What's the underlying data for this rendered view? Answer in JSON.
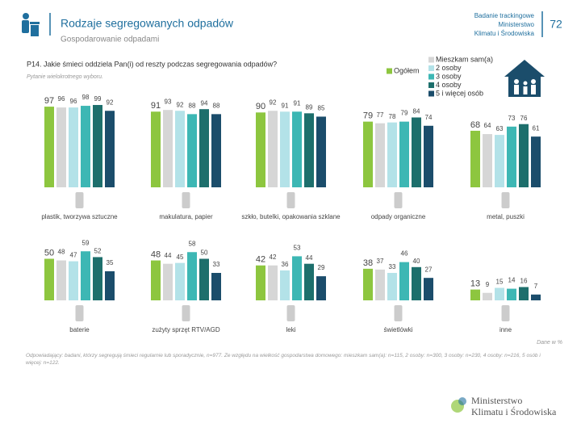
{
  "header": {
    "title": "Rodzaje segregowanych odpadów",
    "subtitle": "Gospodarowanie odpadami",
    "report": [
      "Badanie trackingowe",
      "Ministerstwo",
      "Klimatu i Środowiska"
    ],
    "page": 72
  },
  "chart_data": {
    "type": "bar",
    "title": "P14. Jakie śmieci oddziela Pan(i) od reszty podczas segregowania odpadów?",
    "subtitle": "Pytanie wielokrotnego wyboru.",
    "categories": [
      "plastik, tworzywa sztuczne",
      "makulatura, papier",
      "szkło, butelki, opakowania szklane",
      "odpady organiczne",
      "metal, puszki",
      "baterie",
      "zużyty sprzęt RTV/AGD",
      "leki",
      "świetlówki",
      "inne"
    ],
    "ylim": [
      0,
      100
    ],
    "series": [
      {
        "name": "Ogółem",
        "color": "#8dc63f",
        "values": [
          97,
          91,
          90,
          79,
          68,
          50,
          48,
          42,
          38,
          13
        ]
      },
      {
        "name": "Mieszkam sam(a)",
        "color": "#d6d6d6",
        "values": [
          96,
          93,
          92,
          77,
          64,
          48,
          44,
          42,
          37,
          9
        ]
      },
      {
        "name": "2 osoby",
        "color": "#b3e2e8",
        "values": [
          96,
          92,
          91,
          78,
          63,
          47,
          45,
          36,
          33,
          15
        ]
      },
      {
        "name": "3 osoby",
        "color": "#3db7b4",
        "values": [
          98,
          88,
          91,
          79,
          73,
          59,
          58,
          53,
          46,
          14
        ]
      },
      {
        "name": "4 osoby",
        "color": "#1d6f6c",
        "values": [
          99,
          94,
          89,
          84,
          76,
          52,
          50,
          44,
          40,
          16
        ]
      },
      {
        "name": "5 i więcej osób",
        "color": "#1b4d6b",
        "values": [
          92,
          88,
          85,
          74,
          61,
          35,
          33,
          29,
          27,
          7
        ]
      }
    ],
    "note": "Dane w %",
    "footnote": "Odpowiadający: badani, którzy segregują śmieci regularnie lub sporadycznie, n=977. Ze względu na wielkość gospodarstwa domowego: mieszkam sam(a): n=115, 2 osoby: n=300, 3 osoby: n=230, 4 osoby: n=216, 5 osób i więcej: n=122."
  },
  "logo": [
    "Ministerstwo",
    "Klimatu i Środowiska"
  ]
}
